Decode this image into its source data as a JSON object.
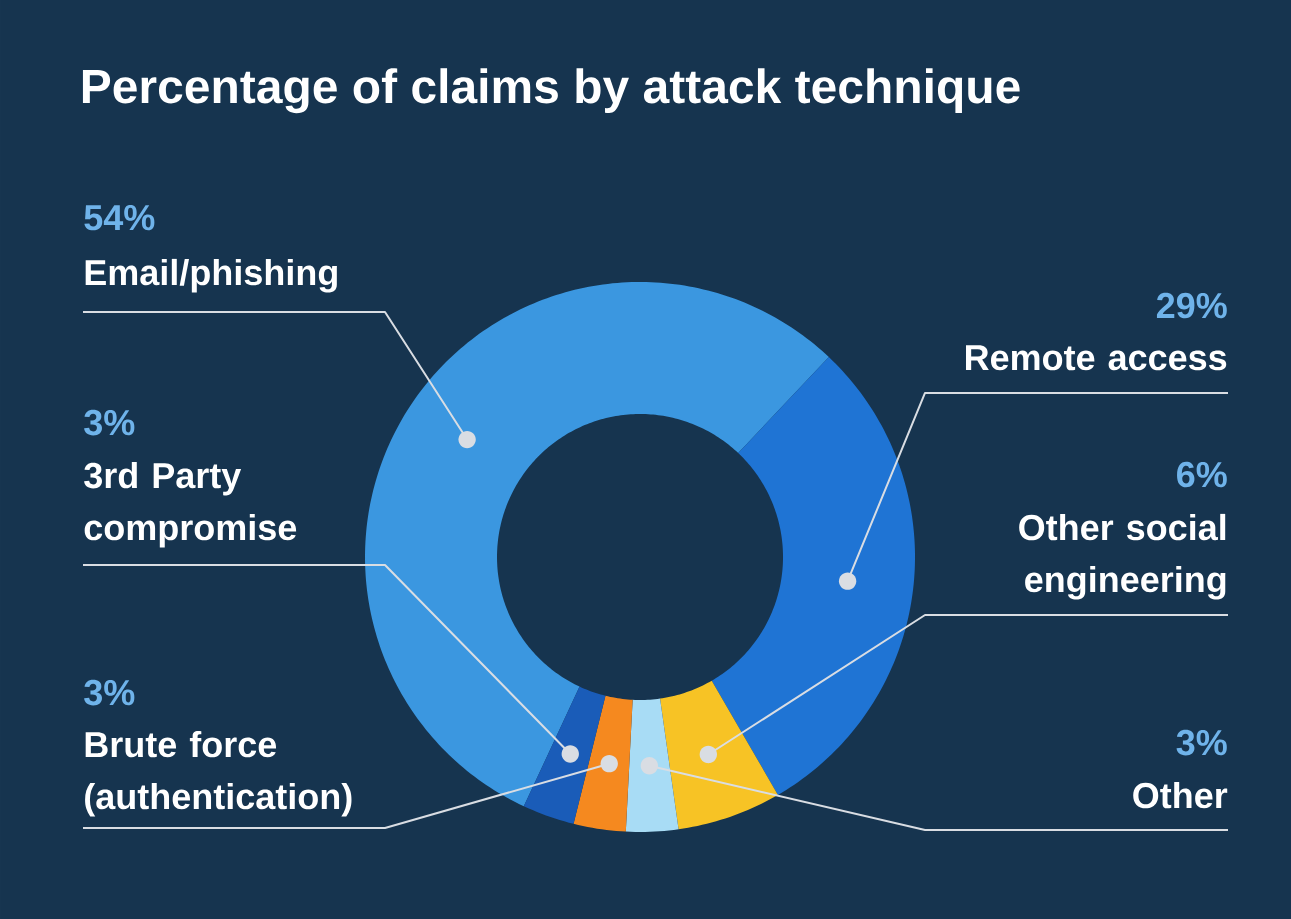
{
  "chart_data": {
    "type": "donut",
    "title": "Percentage of claims by attack technique",
    "categories": [
      "Email/phishing",
      "Remote access",
      "Other social engineering",
      "Other",
      "Brute force (authentication)",
      "3rd Party compromise"
    ],
    "values": [
      54,
      29,
      6,
      3,
      3,
      3
    ],
    "value_labels": [
      "54%",
      "29%",
      "6%",
      "3%",
      "3%",
      "3%"
    ],
    "colors": [
      "#3b97e0",
      "#1f74d4",
      "#f7c325",
      "#a8dcf5",
      "#f5891f",
      "#1a5cb8"
    ]
  }
}
